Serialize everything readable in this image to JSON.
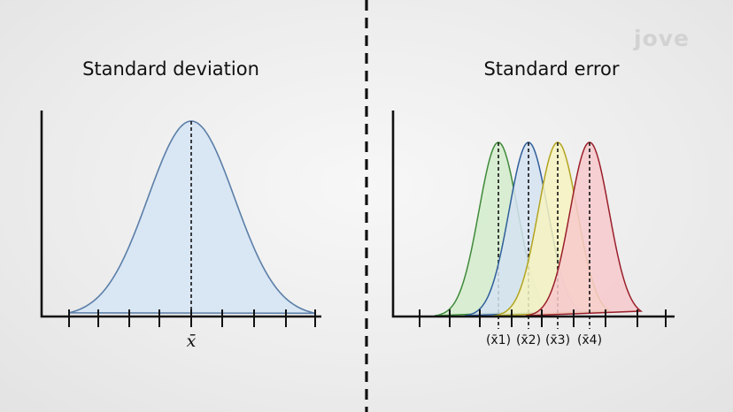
{
  "left_panel": {
    "title": "Standard deviation",
    "mean_label": "x̄",
    "curve": {
      "fill": "#d9e6f4",
      "stroke": "#5b7fa8"
    }
  },
  "right_panel": {
    "title": "Standard error",
    "curves": [
      {
        "label": "(x̄1)",
        "fill": "#d4eccc",
        "stroke": "#3f8a3a"
      },
      {
        "label": "(x̄2)",
        "fill": "#d6e3f2",
        "stroke": "#2f5f9a"
      },
      {
        "label": "(x̄3)",
        "fill": "#f6f3c0",
        "stroke": "#b3a420"
      },
      {
        "label": "(x̄4)",
        "fill": "#f7c9cc",
        "stroke": "#9a1f2a"
      }
    ]
  },
  "logo": {
    "text": "jove"
  }
}
